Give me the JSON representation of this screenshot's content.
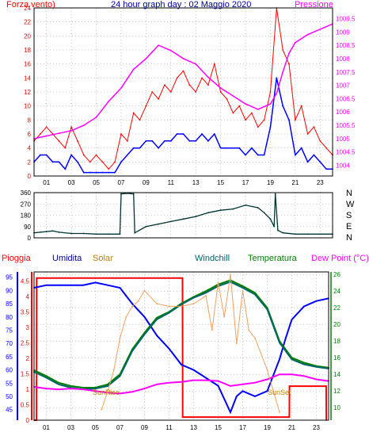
{
  "colors": {
    "wind": "#ff0000",
    "wind_avg": "#0000ff",
    "pressure": "#ff00ff",
    "direction": "#003333",
    "rain": "#ff0000",
    "humidity": "#0000ff",
    "solar": "#f0a060",
    "windchill": "#006666",
    "temperature": "#008000",
    "dewpoint": "#ff00ff",
    "frame": "#000000",
    "grid": "#a0a0a0"
  },
  "header": {
    "left_label": "Forza vento)",
    "title": "24 hour graph day : 02 Maggio 2020",
    "right_label": "Pressione"
  },
  "direction_labels": [
    "N",
    "W",
    "S",
    "E",
    "N"
  ],
  "bottom_legend": {
    "rain": "Pioggia",
    "humidity": "Umidita",
    "solar": "Solar",
    "windchill": "Windchill",
    "temperature": "Temperatura",
    "dewpoint": "Dew Point (°C)"
  },
  "annotations": {
    "sunrise": "SunRise",
    "sunset": "SunSet"
  },
  "chart_data": [
    {
      "type": "line",
      "name": "wind_pressure",
      "x_ticks": [
        "01",
        "03",
        "05",
        "07",
        "09",
        "11",
        "13",
        "15",
        "17",
        "19",
        "21",
        "23"
      ],
      "y_left_ticks": [
        "0",
        "2",
        "4",
        "6",
        "8",
        "10",
        "12",
        "14",
        "16",
        "18",
        "20",
        "22",
        "24"
      ],
      "y_right_ticks": [
        "1004",
        "1004.5",
        "1005",
        "1005.5",
        "1006",
        "1006.5",
        "1007",
        "1007.5",
        "1008",
        "1008.5",
        "1009",
        "1009.5"
      ],
      "ylim_left": [
        0,
        24
      ],
      "ylim_right": [
        1003.6,
        1009.9
      ],
      "xlim": [
        0,
        24
      ],
      "series": [
        {
          "role": "gust",
          "axis": "left",
          "x": [
            0,
            0.5,
            1,
            1.5,
            2,
            2.5,
            3,
            3.5,
            4,
            4.5,
            5,
            5.5,
            6,
            6.5,
            7,
            7.5,
            8,
            8.5,
            9,
            9.5,
            10,
            10.5,
            11,
            11.5,
            12,
            12.5,
            13,
            13.5,
            14,
            14.5,
            15,
            15.5,
            16,
            16.5,
            17,
            17.5,
            18,
            18.5,
            19,
            19.5,
            20,
            20.5,
            21,
            21.5,
            22,
            22.5,
            23,
            23.5,
            24
          ],
          "values": [
            5,
            6,
            7,
            6,
            5,
            4,
            7,
            5,
            3,
            2,
            3,
            2,
            1,
            2,
            6,
            5,
            9,
            8,
            10,
            12,
            11,
            13,
            12,
            14,
            15,
            13,
            12,
            14,
            13,
            16,
            12,
            11,
            9,
            10,
            8,
            9,
            7,
            8,
            12,
            24,
            18,
            16,
            8,
            10,
            6,
            7,
            5,
            4,
            3
          ]
        },
        {
          "role": "average",
          "axis": "left",
          "x": [
            0,
            0.5,
            1,
            1.5,
            2,
            2.5,
            3,
            3.5,
            4,
            4.5,
            5,
            5.5,
            6,
            6.5,
            7,
            7.5,
            8,
            8.5,
            9,
            9.5,
            10,
            10.5,
            11,
            11.5,
            12,
            12.5,
            13,
            13.5,
            14,
            14.5,
            15,
            15.5,
            16,
            16.5,
            17,
            17.5,
            18,
            18.5,
            19,
            19.5,
            20,
            20.5,
            21,
            21.5,
            22,
            22.5,
            23,
            23.5,
            24
          ],
          "values": [
            2,
            3,
            3,
            2,
            2,
            1,
            3,
            2,
            0.5,
            0.5,
            0.5,
            0.5,
            0.5,
            0.5,
            2,
            3,
            4,
            4,
            5,
            5,
            4,
            5,
            5,
            6,
            6,
            5,
            5,
            6,
            5,
            6,
            4,
            4,
            4,
            4,
            3,
            4,
            3,
            3,
            7,
            14,
            10,
            8,
            3,
            4,
            2,
            3,
            2,
            1,
            1
          ]
        },
        {
          "role": "pressure",
          "axis": "right",
          "x": [
            0,
            1,
            2,
            3,
            4,
            5,
            6,
            7,
            8,
            9,
            10,
            11,
            12,
            13,
            14,
            15,
            16,
            17,
            18,
            19,
            19.5,
            20,
            20.5,
            21,
            22,
            23,
            24
          ],
          "values": [
            1005,
            1005.1,
            1005.2,
            1005.3,
            1005.5,
            1005.8,
            1006.4,
            1006.9,
            1007.6,
            1008,
            1008.5,
            1008.3,
            1008,
            1007.8,
            1007.3,
            1006.9,
            1006.6,
            1006.3,
            1006.1,
            1006.3,
            1006.7,
            1007.5,
            1008.2,
            1008.6,
            1008.9,
            1009.1,
            1009.3
          ]
        }
      ]
    },
    {
      "type": "line",
      "name": "wind_direction",
      "y_ticks": [
        "0",
        "90",
        "180",
        "270",
        "360"
      ],
      "ylim": [
        0,
        360
      ],
      "xlim": [
        0,
        24
      ],
      "series": [
        {
          "role": "direction",
          "x": [
            0,
            0.5,
            1,
            1.5,
            2,
            3,
            4,
            5,
            6,
            6.9,
            7,
            7.5,
            8,
            8.1,
            9,
            10,
            11,
            12,
            13,
            14,
            15,
            16,
            17,
            18,
            18.5,
            19,
            19.3,
            19.4,
            19.6,
            20,
            21,
            22,
            23,
            24
          ],
          "values": [
            40,
            45,
            50,
            55,
            45,
            35,
            35,
            30,
            30,
            30,
            350,
            355,
            350,
            40,
            90,
            110,
            130,
            150,
            170,
            200,
            220,
            230,
            260,
            240,
            200,
            150,
            90,
            350,
            60,
            40,
            30,
            30,
            30,
            30
          ]
        }
      ]
    },
    {
      "type": "line",
      "name": "rain_humidity_temperature",
      "x_ticks": [
        "01",
        "03",
        "05",
        "07",
        "09",
        "11",
        "13",
        "15",
        "17",
        "19",
        "21",
        "23"
      ],
      "y_rain_ticks": [
        "0",
        "0.5",
        "1",
        "1.5",
        "2",
        "2.5",
        "3",
        "3.5",
        "4",
        "4.5"
      ],
      "y_humidity_ticks": [
        "45",
        "50",
        "55",
        "60",
        "65",
        "70",
        "75",
        "80",
        "85",
        "90",
        "95"
      ],
      "y_temp_ticks": [
        "10",
        "12",
        "14",
        "16",
        "18",
        "20",
        "22",
        "24",
        "26"
      ],
      "ylim_rain": [
        0,
        4.8
      ],
      "ylim_humidity": [
        41,
        97
      ],
      "ylim_temp": [
        8.5,
        26.3
      ],
      "xlim": [
        0,
        24
      ],
      "series": [
        {
          "role": "rain",
          "axis": "rain",
          "x": [
            0,
            0.2,
            0.21,
            12.1,
            12.11,
            20.8,
            20.81,
            23.8,
            23.81
          ],
          "values": [
            0,
            0,
            4.6,
            4.6,
            0.1,
            0.1,
            1.1,
            1.1,
            0
          ]
        },
        {
          "role": "humidity",
          "axis": "humidity",
          "x": [
            0,
            1,
            2,
            3,
            4,
            5,
            6,
            7,
            7.5,
            8,
            9,
            10,
            11,
            12,
            13,
            14,
            15,
            16,
            16.5,
            17,
            18,
            19,
            20,
            20.5,
            21,
            22,
            23,
            24
          ],
          "values": [
            91,
            92,
            92,
            92,
            92,
            93,
            92,
            91,
            88,
            85,
            80,
            73,
            68,
            62,
            60,
            57,
            54,
            44,
            50,
            52,
            50,
            52,
            64,
            72,
            79,
            84,
            86,
            87
          ]
        },
        {
          "role": "temperature",
          "axis": "temp",
          "x": [
            0,
            1,
            2,
            3,
            4,
            5,
            6,
            7,
            8,
            9,
            10,
            11,
            12,
            13,
            14,
            15,
            16,
            17,
            18,
            19,
            20,
            21,
            22,
            23,
            24
          ],
          "values": [
            14.5,
            13.8,
            13,
            12.6,
            12.4,
            12.4,
            12.8,
            14,
            17,
            19,
            20.8,
            21.5,
            22.5,
            23.3,
            24,
            24.8,
            25.3,
            24.6,
            23.8,
            22,
            18,
            16,
            15.4,
            15,
            14.8
          ]
        },
        {
          "role": "windchill",
          "axis": "temp",
          "x": [
            0,
            1,
            2,
            3,
            4,
            5,
            6,
            7,
            8,
            9,
            10,
            11,
            12,
            13,
            14,
            15,
            16,
            17,
            18,
            19,
            20,
            21,
            22,
            23,
            24
          ],
          "values": [
            14.3,
            13.6,
            12.8,
            12.4,
            12.2,
            12.3,
            12.6,
            13.8,
            16.8,
            18.8,
            20.6,
            21.4,
            22.4,
            23.2,
            23.8,
            24.6,
            25.1,
            24.4,
            23.6,
            21.8,
            17.8,
            15.8,
            15.2,
            14.9,
            14.7
          ]
        },
        {
          "role": "dewpoint",
          "axis": "temp",
          "x": [
            0,
            1,
            2,
            3,
            4,
            5,
            6,
            7,
            8,
            9,
            10,
            11,
            12,
            13,
            14,
            15,
            16,
            17,
            18,
            19,
            20,
            21,
            22,
            23,
            24
          ],
          "values": [
            12.5,
            12.3,
            12.2,
            12.3,
            12.2,
            12,
            11.8,
            11.7,
            11.9,
            12.3,
            12.8,
            13,
            13.1,
            13.3,
            13.3,
            13.2,
            12.6,
            12.8,
            13,
            13.4,
            14,
            14,
            13.8,
            13.4,
            13.2
          ]
        },
        {
          "role": "solar",
          "axis": "humidity",
          "x": [
            5.5,
            6,
            6.5,
            7,
            7.5,
            8,
            8.5,
            9,
            10,
            11,
            12,
            13,
            14,
            14.5,
            15,
            15.5,
            16,
            16.5,
            17,
            17.5,
            18,
            19,
            19.5,
            20
          ],
          "values": [
            45,
            52,
            60,
            72,
            80,
            84,
            86,
            90,
            85,
            84,
            84,
            85,
            88,
            75,
            93,
            80,
            96,
            70,
            90,
            75,
            72,
            60,
            52,
            44
          ]
        }
      ]
    }
  ]
}
